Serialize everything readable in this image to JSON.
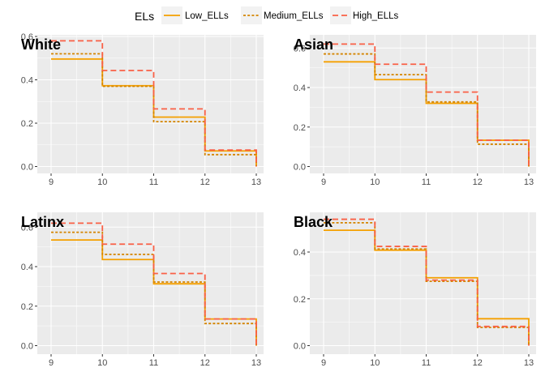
{
  "legend": {
    "title": "ELs",
    "position": "top",
    "entries": [
      {
        "label": "Low_ELLs",
        "color": "#f5a000",
        "dash": "solid"
      },
      {
        "label": "Medium_ELLs",
        "color": "#d48400",
        "dash": "dotted"
      },
      {
        "label": "High_ELLs",
        "color": "#fa6046",
        "dash": "dashed"
      }
    ]
  },
  "chart_data": [
    {
      "type": "line",
      "step": true,
      "title": "White",
      "xlim": [
        9,
        13
      ],
      "ylim": [
        0,
        0.6
      ],
      "x_ticks": [
        9,
        10,
        11,
        12,
        13
      ],
      "y_ticks": [
        0.0,
        0.2,
        0.4,
        0.6
      ],
      "y_tick_labels": [
        "0.0",
        "0.2",
        "0.4",
        "0.6"
      ],
      "series": [
        {
          "name": "Low_ELLs",
          "x": [
            9,
            10,
            11,
            12,
            13
          ],
          "values": [
            0.496,
            0.373,
            0.228,
            0.072,
            0.0
          ]
        },
        {
          "name": "Medium_ELLs",
          "x": [
            9,
            10,
            11,
            12,
            13
          ],
          "values": [
            0.52,
            0.37,
            0.207,
            0.055,
            0.0
          ]
        },
        {
          "name": "High_ELLs",
          "x": [
            9,
            10,
            11,
            12,
            13
          ],
          "values": [
            0.58,
            0.443,
            0.266,
            0.076,
            0.0
          ]
        }
      ]
    },
    {
      "type": "line",
      "step": true,
      "title": "Asian",
      "xlim": [
        9,
        13
      ],
      "ylim": [
        0,
        0.6
      ],
      "x_ticks": [
        9,
        10,
        11,
        12,
        13
      ],
      "y_ticks": [
        0.0,
        0.2,
        0.4,
        0.6
      ],
      "y_tick_labels": [
        "0.0",
        "0.2",
        "0.4",
        "0.6"
      ],
      "series": [
        {
          "name": "Low_ELLs",
          "x": [
            9,
            10,
            11,
            12,
            13
          ],
          "values": [
            0.53,
            0.44,
            0.32,
            0.133,
            0.0
          ]
        },
        {
          "name": "Medium_ELLs",
          "x": [
            9,
            10,
            11,
            12,
            13
          ],
          "values": [
            0.57,
            0.465,
            0.327,
            0.113,
            0.0
          ]
        },
        {
          "name": "High_ELLs",
          "x": [
            9,
            10,
            11,
            12,
            13
          ],
          "values": [
            0.62,
            0.518,
            0.377,
            0.133,
            0.0
          ]
        }
      ]
    },
    {
      "type": "line",
      "step": true,
      "title": "Latinx",
      "xlim": [
        9,
        13
      ],
      "ylim": [
        0,
        0.6
      ],
      "x_ticks": [
        9,
        10,
        11,
        12,
        13
      ],
      "y_ticks": [
        0.0,
        0.2,
        0.4,
        0.6
      ],
      "y_tick_labels": [
        "0.0",
        "0.2",
        "0.4",
        "0.6"
      ],
      "series": [
        {
          "name": "Low_ELLs",
          "x": [
            9,
            10,
            11,
            12,
            13
          ],
          "values": [
            0.535,
            0.436,
            0.313,
            0.135,
            0.0
          ]
        },
        {
          "name": "Medium_ELLs",
          "x": [
            9,
            10,
            11,
            12,
            13
          ],
          "values": [
            0.574,
            0.462,
            0.322,
            0.112,
            0.0
          ]
        },
        {
          "name": "High_ELLs",
          "x": [
            9,
            10,
            11,
            12,
            13
          ],
          "values": [
            0.62,
            0.514,
            0.365,
            0.135,
            0.0
          ]
        }
      ]
    },
    {
      "type": "line",
      "step": true,
      "title": "Black",
      "xlim": [
        9,
        13
      ],
      "ylim": [
        0,
        0.6
      ],
      "x_ticks": [
        9,
        10,
        11,
        12,
        13
      ],
      "y_ticks": [
        0.0,
        0.2,
        0.4
      ],
      "y_tick_labels": [
        "0.0",
        "0.2",
        "0.4"
      ],
      "series": [
        {
          "name": "Low_ELLs",
          "x": [
            9,
            10,
            11,
            12,
            13
          ],
          "values": [
            0.493,
            0.408,
            0.29,
            0.115,
            0.0
          ]
        },
        {
          "name": "Medium_ELLs",
          "x": [
            9,
            10,
            11,
            12,
            13
          ],
          "values": [
            0.525,
            0.413,
            0.275,
            0.078,
            0.0
          ]
        },
        {
          "name": "High_ELLs",
          "x": [
            9,
            10,
            11,
            12,
            13
          ],
          "values": [
            0.54,
            0.424,
            0.28,
            0.082,
            0.0
          ]
        }
      ]
    }
  ]
}
